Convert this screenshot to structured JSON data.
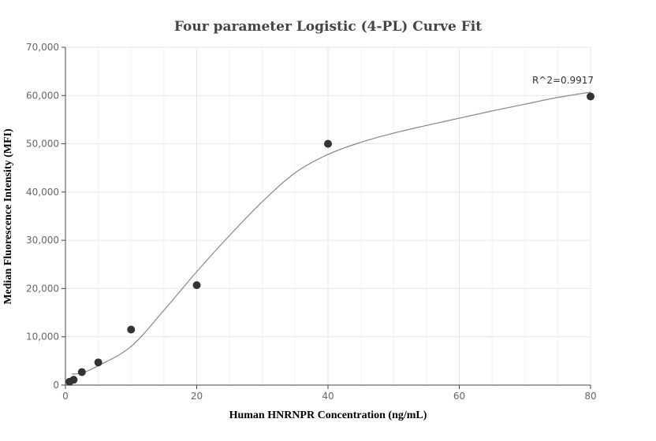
{
  "chart_data": {
    "type": "scatter",
    "title": "Four parameter Logistic (4-PL) Curve Fit",
    "xlabel": "Human HNRNPR Concentration (ng/mL)",
    "ylabel": "Median Fluorescence Intensity (MFI)",
    "xlim": [
      0,
      80
    ],
    "ylim": [
      0,
      70000
    ],
    "x_ticks": [
      0,
      20,
      40,
      60,
      80
    ],
    "y_ticks": [
      0,
      10000,
      20000,
      30000,
      40000,
      50000,
      60000,
      70000
    ],
    "x_tick_labels": [
      "0",
      "20",
      "40",
      "60",
      "80"
    ],
    "y_tick_labels": [
      "0",
      "10,000",
      "20,000",
      "30,000",
      "40,000",
      "50,000",
      "60,000",
      "70,000"
    ],
    "grid": true,
    "series": [
      {
        "x": [
          0.625,
          1.25,
          2.5,
          5,
          10,
          20,
          40,
          80
        ],
        "y": [
          700,
          1100,
          2700,
          4700,
          11500,
          20700,
          50000,
          59800
        ]
      }
    ],
    "fit_curve": {
      "x": [
        1,
        2.5,
        5,
        10,
        15,
        20,
        25,
        30,
        35,
        40,
        45,
        50,
        55,
        60,
        65,
        70,
        75,
        80
      ],
      "y": [
        2300,
        2500,
        4000,
        8000,
        15500,
        23500,
        31000,
        38000,
        44000,
        47800,
        50300,
        52200,
        53800,
        55300,
        56800,
        58200,
        59600,
        60700
      ]
    },
    "annotations": [
      {
        "text": "R^2=0.9917",
        "x": 80,
        "y": 60700
      }
    ]
  }
}
